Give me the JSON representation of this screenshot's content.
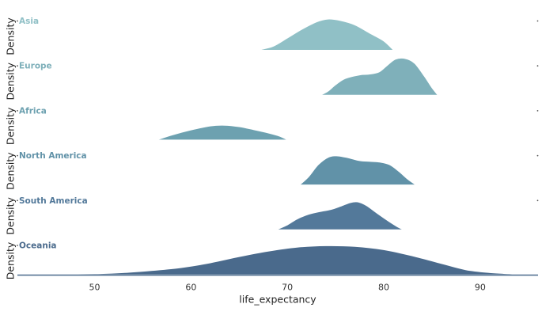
{
  "chart_data": {
    "type": "ridgeline",
    "xlabel": "life_expectancy",
    "ylabel": "Density",
    "xlim": [
      42,
      96
    ],
    "xticks": [
      50,
      60,
      70,
      80,
      90
    ],
    "grid": false,
    "series": [
      {
        "name": "Asia",
        "color": "#90c0c6",
        "points": [
          [
            67.0,
            0.0
          ],
          [
            68.5,
            0.1
          ],
          [
            70,
            0.33
          ],
          [
            71.5,
            0.57
          ],
          [
            73,
            0.77
          ],
          [
            74.2,
            0.85
          ],
          [
            75.5,
            0.81
          ],
          [
            77,
            0.69
          ],
          [
            78.5,
            0.47
          ],
          [
            80,
            0.25
          ],
          [
            81,
            0.0
          ]
        ]
      },
      {
        "name": "Europe",
        "color": "#7fb0ba",
        "points": [
          [
            73.5,
            0.0
          ],
          [
            74.2,
            0.1
          ],
          [
            75,
            0.28
          ],
          [
            76,
            0.45
          ],
          [
            77.5,
            0.55
          ],
          [
            78.5,
            0.57
          ],
          [
            79.5,
            0.63
          ],
          [
            80.3,
            0.8
          ],
          [
            81.2,
            0.98
          ],
          [
            82.2,
            1.0
          ],
          [
            83.2,
            0.87
          ],
          [
            84.2,
            0.52
          ],
          [
            85,
            0.2
          ],
          [
            85.6,
            0.0
          ]
        ]
      },
      {
        "name": "Africa",
        "color": "#6da1b0",
        "points": [
          [
            56.5,
            0.0
          ],
          [
            58,
            0.13
          ],
          [
            60,
            0.27
          ],
          [
            62,
            0.38
          ],
          [
            63.5,
            0.4
          ],
          [
            65,
            0.36
          ],
          [
            66.5,
            0.28
          ],
          [
            68,
            0.19
          ],
          [
            69.2,
            0.1
          ],
          [
            70,
            0.0
          ]
        ]
      },
      {
        "name": "North America",
        "color": "#6192a8",
        "points": [
          [
            71.3,
            0.0
          ],
          [
            72.2,
            0.22
          ],
          [
            73.2,
            0.55
          ],
          [
            74.3,
            0.76
          ],
          [
            75.2,
            0.79
          ],
          [
            76.3,
            0.74
          ],
          [
            77.5,
            0.66
          ],
          [
            78.6,
            0.64
          ],
          [
            79.6,
            0.62
          ],
          [
            80.6,
            0.55
          ],
          [
            81.6,
            0.36
          ],
          [
            82.5,
            0.15
          ],
          [
            83.3,
            0.0
          ]
        ]
      },
      {
        "name": "South America",
        "color": "#53799a",
        "points": [
          [
            68.9,
            0.0
          ],
          [
            70,
            0.13
          ],
          [
            71,
            0.29
          ],
          [
            72.2,
            0.42
          ],
          [
            73.5,
            0.5
          ],
          [
            74.5,
            0.55
          ],
          [
            75.5,
            0.64
          ],
          [
            76.5,
            0.74
          ],
          [
            77.3,
            0.76
          ],
          [
            78.2,
            0.66
          ],
          [
            79.3,
            0.45
          ],
          [
            80.5,
            0.23
          ],
          [
            81.4,
            0.08
          ],
          [
            82,
            0.0
          ]
        ]
      },
      {
        "name": "Oceania",
        "color": "#4a6a8c",
        "points": [
          [
            42.5,
            0.0
          ],
          [
            50,
            0.02
          ],
          [
            53.5,
            0.06
          ],
          [
            56,
            0.11
          ],
          [
            59,
            0.19
          ],
          [
            62,
            0.32
          ],
          [
            65,
            0.49
          ],
          [
            68,
            0.64
          ],
          [
            71,
            0.75
          ],
          [
            74,
            0.79
          ],
          [
            77,
            0.77
          ],
          [
            80,
            0.68
          ],
          [
            83,
            0.51
          ],
          [
            86,
            0.3
          ],
          [
            88.5,
            0.13
          ],
          [
            91,
            0.05
          ],
          [
            93,
            0.02
          ],
          [
            94.3,
            0.0
          ]
        ]
      }
    ]
  }
}
